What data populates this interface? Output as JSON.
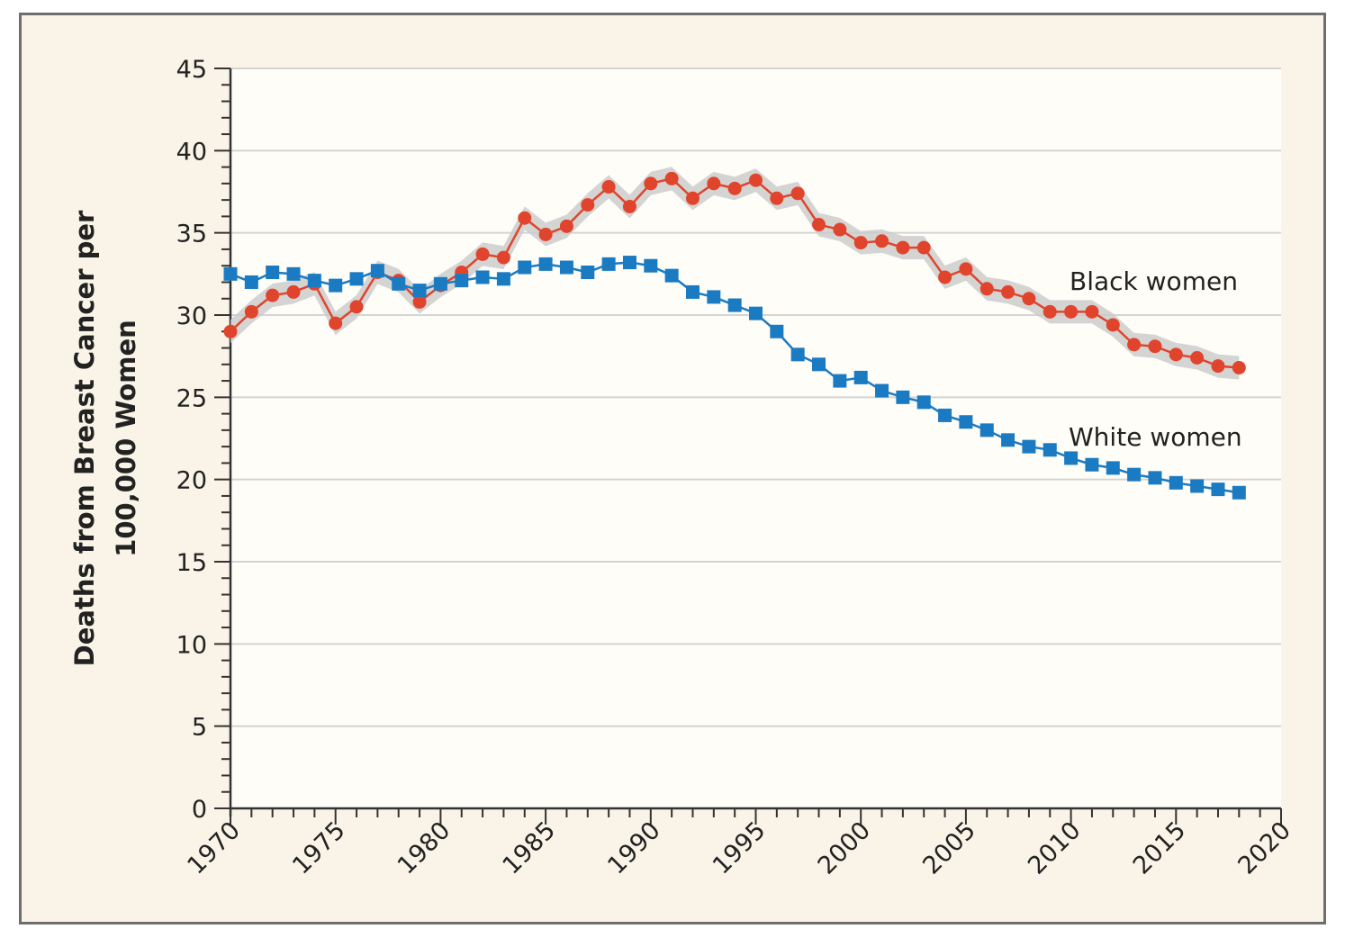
{
  "chart_data": {
    "type": "line",
    "title": "",
    "ylabel_lines": [
      "Deaths from Breast Cancer per",
      "100,000 Women"
    ],
    "xlim": [
      1970,
      2020
    ],
    "ylim": [
      0,
      45
    ],
    "xticks": [
      "1970",
      "1975",
      "1980",
      "1985",
      "1990",
      "1995",
      "2000",
      "2005",
      "2010",
      "2015",
      "2020"
    ],
    "yticks": [
      "0",
      "5",
      "10",
      "15",
      "20",
      "25",
      "30",
      "35",
      "40",
      "45"
    ],
    "grid": true,
    "x": [
      1970,
      1971,
      1972,
      1973,
      1974,
      1975,
      1976,
      1977,
      1978,
      1979,
      1980,
      1981,
      1982,
      1983,
      1984,
      1985,
      1986,
      1987,
      1988,
      1989,
      1990,
      1991,
      1992,
      1993,
      1994,
      1995,
      1996,
      1997,
      1998,
      1999,
      2000,
      2001,
      2002,
      2003,
      2004,
      2005,
      2006,
      2007,
      2008,
      2009,
      2010,
      2011,
      2012,
      2013,
      2014,
      2015,
      2016,
      2017,
      2018
    ],
    "series": [
      {
        "name": "Black women",
        "color": "#e0442d",
        "marker": "circle",
        "has_confidence_band": true,
        "values": [
          29.0,
          30.2,
          31.2,
          31.4,
          31.9,
          29.5,
          30.5,
          32.6,
          32.1,
          30.8,
          31.8,
          32.6,
          33.7,
          33.5,
          35.9,
          34.9,
          35.4,
          36.7,
          37.8,
          36.6,
          38.0,
          38.3,
          37.1,
          38.0,
          37.7,
          38.2,
          37.1,
          37.4,
          35.5,
          35.2,
          34.4,
          34.5,
          34.1,
          34.1,
          32.3,
          32.8,
          31.6,
          31.4,
          31.0,
          30.2,
          30.2,
          30.2,
          29.4,
          28.2,
          28.1,
          27.6,
          27.4,
          26.9,
          26.8
        ]
      },
      {
        "name": "White women",
        "color": "#1b7bc2",
        "marker": "square",
        "has_confidence_band": false,
        "values": [
          32.5,
          32.0,
          32.6,
          32.5,
          32.1,
          31.8,
          32.2,
          32.7,
          31.9,
          31.5,
          31.9,
          32.1,
          32.3,
          32.2,
          32.9,
          33.1,
          32.9,
          32.6,
          33.1,
          33.2,
          33.0,
          32.4,
          31.4,
          31.1,
          30.6,
          30.1,
          29.0,
          27.6,
          27.0,
          26.0,
          26.2,
          25.4,
          25.0,
          24.7,
          23.9,
          23.5,
          23.0,
          22.4,
          22.0,
          21.8,
          21.3,
          20.9,
          20.7,
          20.3,
          20.1,
          19.8,
          19.6,
          19.4,
          19.2
        ]
      }
    ]
  }
}
